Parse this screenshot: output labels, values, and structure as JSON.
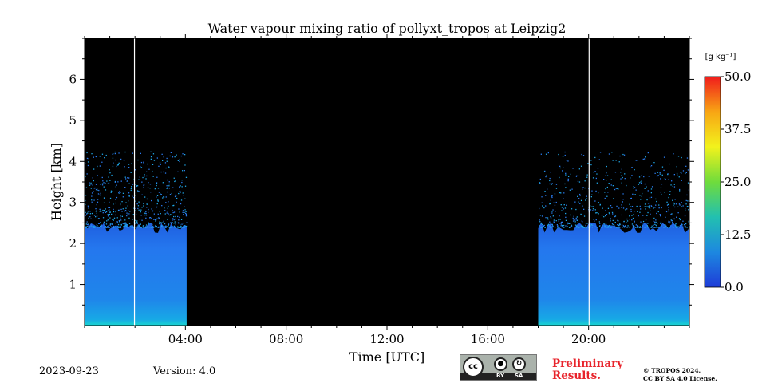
{
  "chart_data": {
    "type": "heatmap",
    "title": "Water vapour mixing ratio of pollyxt_tropos at Leipzig2",
    "xlabel": "Time [UTC]",
    "ylabel": "Height [km]",
    "xlim": [
      0,
      24
    ],
    "ylim": [
      0,
      7
    ],
    "x_ticks": [
      4,
      8,
      12,
      16,
      20
    ],
    "x_tick_labels": [
      "04:00",
      "08:00",
      "12:00",
      "16:00",
      "20:00"
    ],
    "y_ticks": [
      1,
      2,
      3,
      4,
      5,
      6
    ],
    "y_tick_labels": [
      "1",
      "2",
      "3",
      "4",
      "5",
      "6"
    ],
    "background_color": "#000000",
    "data_segments": [
      {
        "start": 0.0,
        "end": 4.05,
        "top_km": 2.4
      },
      {
        "start": 18.0,
        "end": 24.0,
        "top_km": 2.4
      }
    ],
    "gaps": [
      1.98,
      20.02
    ],
    "colorbar": {
      "label": "[g kg⁻¹]",
      "range": [
        0,
        50
      ],
      "ticks": [
        0,
        12.5,
        25,
        37.5,
        50
      ],
      "tick_labels": [
        "0.0",
        "12.5",
        "25.0",
        "37.5",
        "50.0"
      ],
      "colormap": [
        "#1e3cd8",
        "#1d88e0",
        "#22c0b0",
        "#6fdc3c",
        "#f2f21c",
        "#f8a514",
        "#f01c1c"
      ]
    }
  },
  "footer": {
    "date": "2023-09-23",
    "version": "Version: 4.0",
    "cc_text": "cc",
    "cc_by": "BY",
    "cc_sa": "SA",
    "preliminary_line1": "Preliminary",
    "preliminary_line2": "Results.",
    "copyright_line1": "© TROPOS 2024.",
    "copyright_line2": "CC BY SA 4.0 License."
  }
}
